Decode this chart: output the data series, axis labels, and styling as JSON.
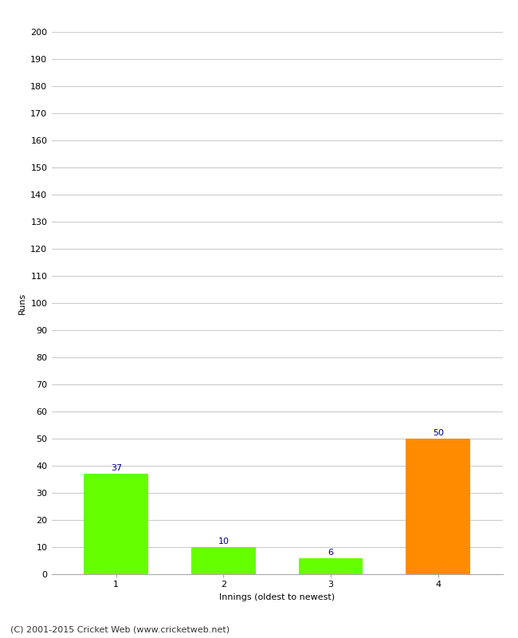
{
  "categories": [
    "1",
    "2",
    "3",
    "4"
  ],
  "values": [
    37,
    10,
    6,
    50
  ],
  "bar_colors": [
    "#66ff00",
    "#66ff00",
    "#66ff00",
    "#ff8c00"
  ],
  "value_labels": [
    37,
    10,
    6,
    50
  ],
  "label_color": "#00008b",
  "xlabel": "Innings (oldest to newest)",
  "ylabel": "Runs",
  "ylim": [
    0,
    200
  ],
  "yticks": [
    0,
    10,
    20,
    30,
    40,
    50,
    60,
    70,
    80,
    90,
    100,
    110,
    120,
    130,
    140,
    150,
    160,
    170,
    180,
    190,
    200
  ],
  "background_color": "#ffffff",
  "footer": "(C) 2001-2015 Cricket Web (www.cricketweb.net)",
  "bar_width": 0.6,
  "grid_color": "#cccccc",
  "label_fontsize": 8,
  "axis_fontsize": 8,
  "ylabel_fontsize": 8,
  "xlabel_fontsize": 8,
  "footer_fontsize": 8
}
